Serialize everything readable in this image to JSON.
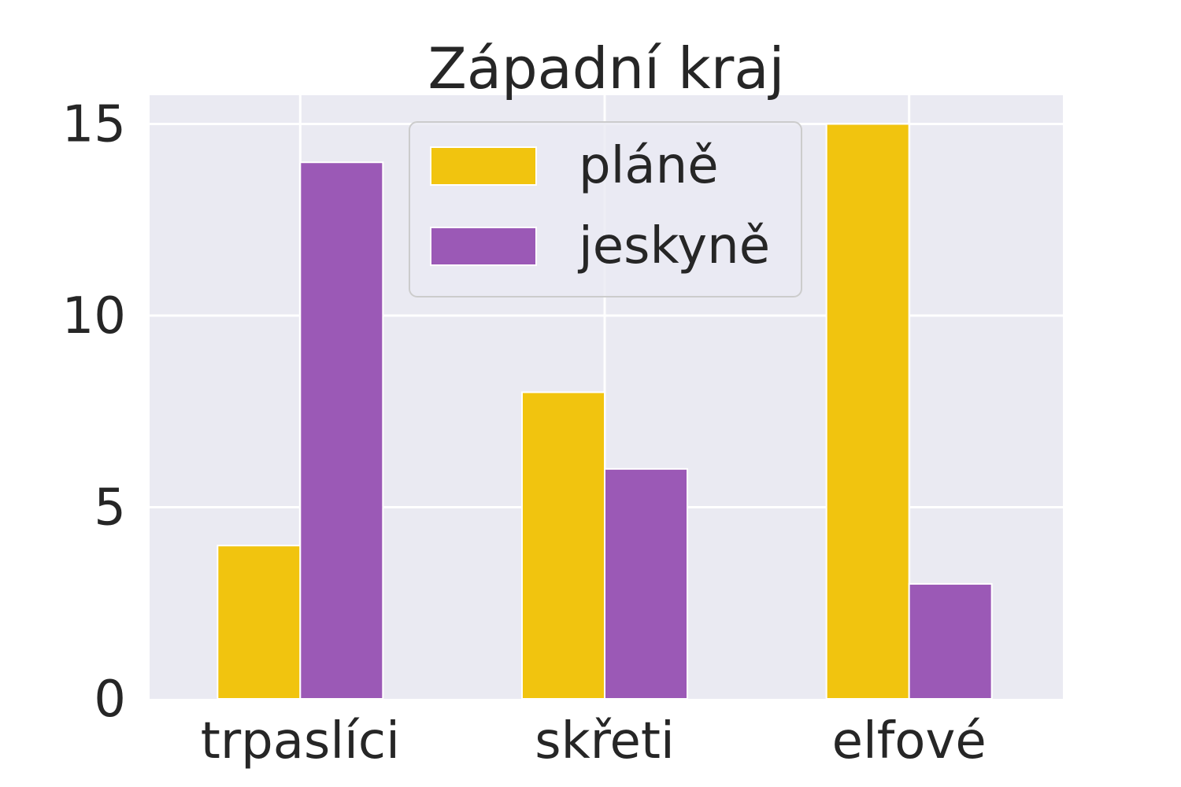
{
  "chart_data": {
    "type": "bar",
    "title": "Západní kraj",
    "xlabel": "",
    "ylabel": "",
    "categories": [
      "trpaslíci",
      "skřeti",
      "elfové"
    ],
    "series": [
      {
        "name": "pláně",
        "color": "#f1c40f",
        "values": [
          4,
          8,
          15
        ]
      },
      {
        "name": "jeskyně",
        "color": "#9b59b6",
        "values": [
          14,
          6,
          3
        ]
      }
    ],
    "ylim": [
      0,
      15.75
    ],
    "yticks": [
      0,
      5,
      10,
      15
    ],
    "grid": true,
    "legend_position": "upper-center",
    "background_color": "#eaeaf2"
  }
}
